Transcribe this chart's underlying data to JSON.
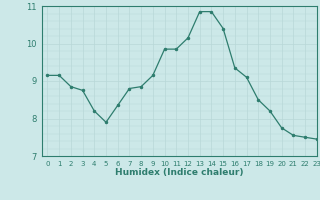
{
  "x": [
    0,
    1,
    2,
    3,
    4,
    5,
    6,
    7,
    8,
    9,
    10,
    11,
    12,
    13,
    14,
    15,
    16,
    17,
    18,
    19,
    20,
    21,
    22,
    23
  ],
  "y": [
    9.15,
    9.15,
    8.85,
    8.75,
    8.2,
    7.9,
    8.35,
    8.8,
    8.85,
    9.15,
    9.85,
    9.85,
    10.15,
    10.85,
    10.85,
    10.4,
    9.35,
    9.1,
    8.5,
    8.2,
    7.75,
    7.55,
    7.5,
    7.45
  ],
  "xlabel": "Humidex (Indice chaleur)",
  "ylim": [
    7,
    11
  ],
  "xlim": [
    -0.5,
    23
  ],
  "yticks": [
    7,
    8,
    9,
    10,
    11
  ],
  "xticks": [
    0,
    1,
    2,
    3,
    4,
    5,
    6,
    7,
    8,
    9,
    10,
    11,
    12,
    13,
    14,
    15,
    16,
    17,
    18,
    19,
    20,
    21,
    22,
    23
  ],
  "line_color": "#2e7d6e",
  "marker_color": "#2e7d6e",
  "bg_color": "#cce8e8",
  "grid_major_color": "#b8d8d8",
  "grid_minor_color": "#b8d8d8",
  "plot_bg": "#cce8e8"
}
